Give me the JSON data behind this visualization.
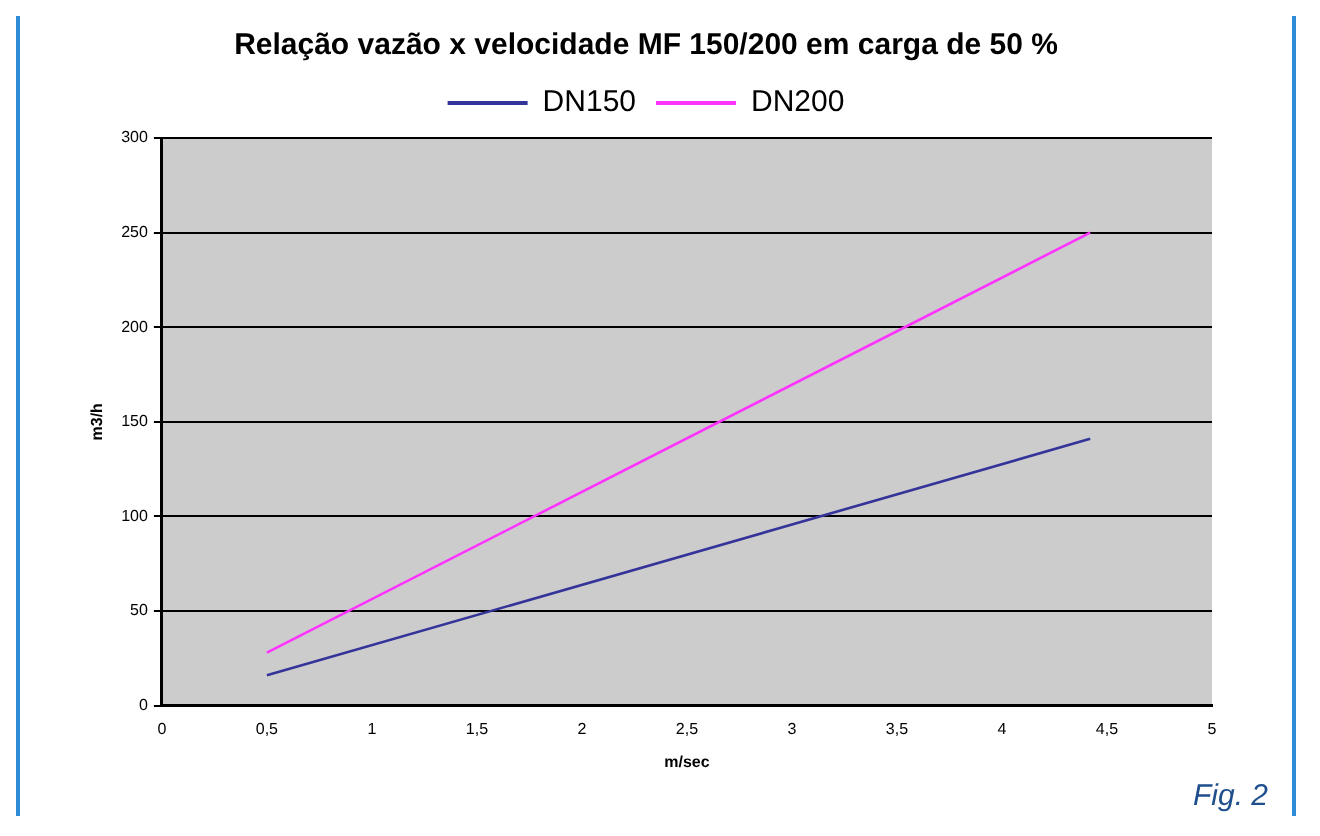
{
  "chart_data": {
    "type": "line",
    "title": "Relação vazão x velocidade MF 150/200 em carga de 50 %",
    "xlabel": "m/sec",
    "ylabel": "m3/h",
    "annotations": [
      "Fig. 2"
    ],
    "x": [
      0.5,
      4.42
    ],
    "series": [
      {
        "name": "DN150",
        "color": "#333399",
        "values": [
          16,
          141
        ]
      },
      {
        "name": "DN200",
        "color": "#ff33ff",
        "values": [
          28,
          250
        ]
      }
    ],
    "xlim": [
      0,
      5
    ],
    "xticks": [
      0,
      {
        "value": 0.5,
        "label": "0,5"
      },
      1,
      {
        "value": 1.5,
        "label": "1,5"
      },
      2,
      {
        "value": 2.5,
        "label": "2,5"
      },
      3,
      {
        "value": 3.5,
        "label": "3,5"
      },
      4,
      {
        "value": 4.5,
        "label": "4,5"
      },
      5
    ],
    "ylim": [
      0,
      300
    ],
    "yticks": [
      0,
      50,
      100,
      150,
      200,
      250,
      300
    ],
    "grid": "y",
    "legend": "top",
    "marker": "none",
    "line_style": "solid"
  }
}
